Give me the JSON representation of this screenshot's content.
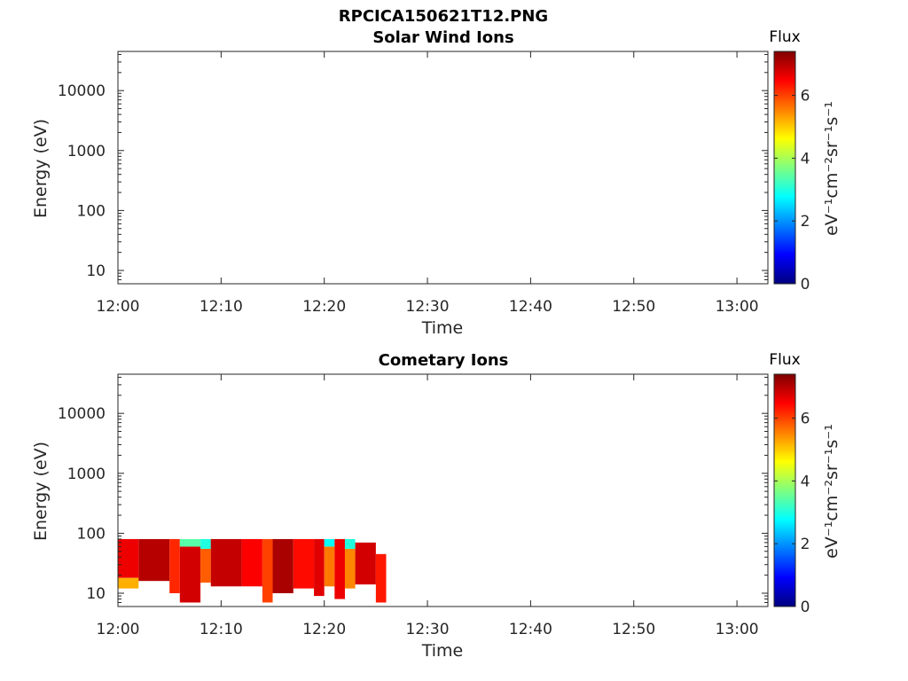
{
  "figure_title": "RPCICA150621T12.PNG",
  "colormap": [
    "#00007f",
    "#0000ff",
    "#007fff",
    "#00ffff",
    "#7fff7f",
    "#ffff00",
    "#ff7f00",
    "#ff0000",
    "#7f0000"
  ],
  "chart_data": [
    {
      "type": "heatmap",
      "title": "Solar Wind Ions",
      "xlabel": "Time",
      "ylabel": "Energy (eV)",
      "y_scale": "log",
      "ylim": [
        6,
        45000
      ],
      "xlim": [
        "12:00",
        "13:03"
      ],
      "x_ticks": [
        "12:00",
        "12:10",
        "12:20",
        "12:30",
        "12:40",
        "12:50",
        "13:00"
      ],
      "y_ticks": [
        "10",
        "100",
        "1000",
        "10000"
      ],
      "y_tick_values": [
        10,
        100,
        1000,
        10000
      ],
      "colorbar": {
        "title": "Flux",
        "label": "eV⁻¹cm⁻²sr⁻¹s⁻¹",
        "ticks": [
          "0",
          "2",
          "4",
          "6"
        ],
        "tick_values": [
          0,
          2,
          4,
          6
        ],
        "range": [
          0,
          7.4
        ]
      },
      "cells": []
    },
    {
      "type": "heatmap",
      "title": "Cometary Ions",
      "xlabel": "Time",
      "ylabel": "Energy (eV)",
      "y_scale": "log",
      "ylim": [
        6,
        45000
      ],
      "xlim": [
        "12:00",
        "13:03"
      ],
      "x_ticks": [
        "12:00",
        "12:10",
        "12:20",
        "12:30",
        "12:40",
        "12:50",
        "13:00"
      ],
      "y_ticks": [
        "10",
        "100",
        "1000",
        "10000"
      ],
      "y_tick_values": [
        10,
        100,
        1000,
        10000
      ],
      "colorbar": {
        "title": "Flux",
        "label": "eV⁻¹cm⁻²sr⁻¹s⁻¹",
        "ticks": [
          "0",
          "2",
          "4",
          "6"
        ],
        "tick_values": [
          0,
          2,
          4,
          6
        ],
        "range": [
          0,
          7.4
        ]
      },
      "cells": [
        {
          "t_start": "12:00",
          "t_end": "12:02",
          "e_low": 18,
          "e_high": 80,
          "flux": 6.6
        },
        {
          "t_start": "12:00",
          "t_end": "12:02",
          "e_low": 12,
          "e_high": 18,
          "flux": 5.2
        },
        {
          "t_start": "12:02",
          "t_end": "12:05",
          "e_low": 16,
          "e_high": 80,
          "flux": 7.0
        },
        {
          "t_start": "12:05",
          "t_end": "12:06",
          "e_low": 10,
          "e_high": 80,
          "flux": 6.2
        },
        {
          "t_start": "12:06",
          "t_end": "12:08",
          "e_low": 7,
          "e_high": 60,
          "flux": 6.8
        },
        {
          "t_start": "12:06",
          "t_end": "12:08",
          "e_low": 60,
          "e_high": 80,
          "flux": 3.4
        },
        {
          "t_start": "12:08",
          "t_end": "12:09",
          "e_low": 15,
          "e_high": 55,
          "flux": 5.8
        },
        {
          "t_start": "12:08",
          "t_end": "12:09",
          "e_low": 55,
          "e_high": 80,
          "flux": 3.0
        },
        {
          "t_start": "12:09",
          "t_end": "12:12",
          "e_low": 13,
          "e_high": 80,
          "flux": 6.9
        },
        {
          "t_start": "12:12",
          "t_end": "12:14",
          "e_low": 13,
          "e_high": 80,
          "flux": 6.5
        },
        {
          "t_start": "12:14",
          "t_end": "12:15",
          "e_low": 7,
          "e_high": 80,
          "flux": 6.0
        },
        {
          "t_start": "12:15",
          "t_end": "12:17",
          "e_low": 10,
          "e_high": 80,
          "flux": 7.1
        },
        {
          "t_start": "12:17",
          "t_end": "12:19",
          "e_low": 12,
          "e_high": 80,
          "flux": 6.4
        },
        {
          "t_start": "12:19",
          "t_end": "12:20",
          "e_low": 9,
          "e_high": 80,
          "flux": 6.7
        },
        {
          "t_start": "12:20",
          "t_end": "12:21",
          "e_low": 13,
          "e_high": 60,
          "flux": 5.6
        },
        {
          "t_start": "12:20",
          "t_end": "12:21",
          "e_low": 60,
          "e_high": 80,
          "flux": 2.8
        },
        {
          "t_start": "12:21",
          "t_end": "12:22",
          "e_low": 8,
          "e_high": 80,
          "flux": 6.6
        },
        {
          "t_start": "12:22",
          "t_end": "12:23",
          "e_low": 12,
          "e_high": 55,
          "flux": 5.5
        },
        {
          "t_start": "12:22",
          "t_end": "12:23",
          "e_low": 55,
          "e_high": 80,
          "flux": 3.0
        },
        {
          "t_start": "12:23",
          "t_end": "12:25",
          "e_low": 14,
          "e_high": 70,
          "flux": 6.8
        },
        {
          "t_start": "12:25",
          "t_end": "12:26",
          "e_low": 7,
          "e_high": 45,
          "flux": 6.3
        }
      ]
    }
  ]
}
